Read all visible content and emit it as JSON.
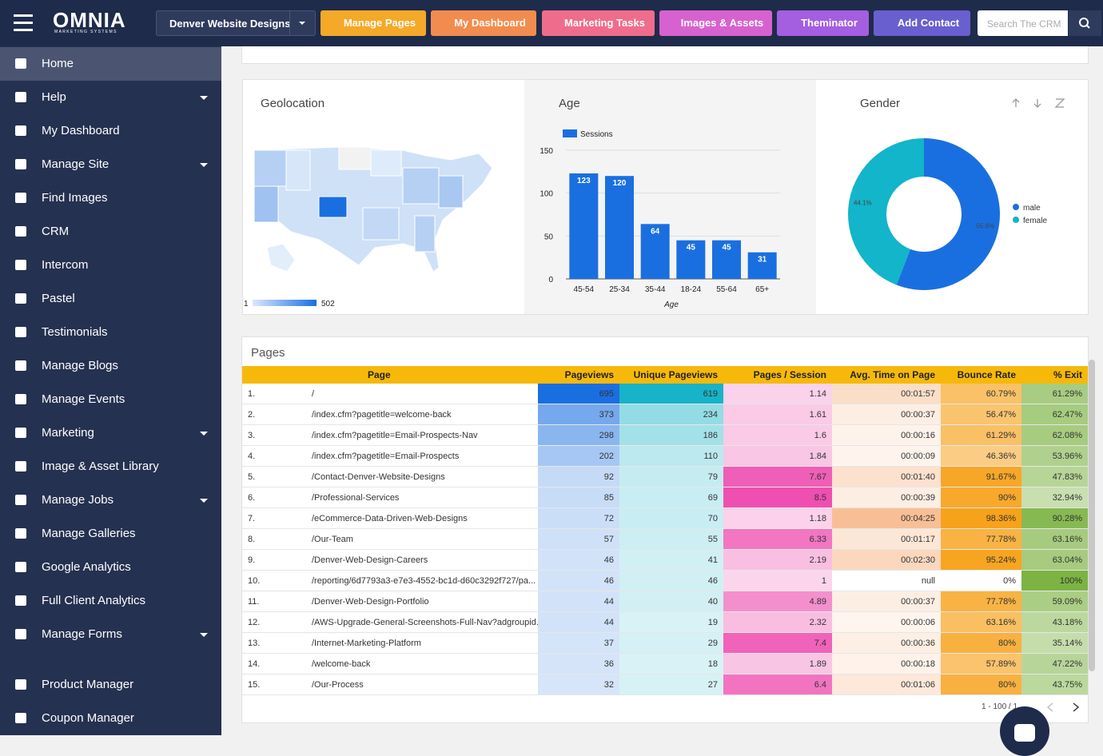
{
  "topbar": {
    "logo": "OMNIA",
    "logo_sub": "MARKETING SYSTEMS",
    "site_select": "Denver Website Designs",
    "buttons": [
      {
        "label": "Manage Pages",
        "color": "#f5a928"
      },
      {
        "label": "My Dashboard",
        "color": "#f28c4e"
      },
      {
        "label": "Marketing Tasks",
        "color": "#f06c8c"
      },
      {
        "label": "Images & Assets",
        "color": "#d662cf"
      },
      {
        "label": "Theminator",
        "color": "#a45ee0"
      },
      {
        "label": "Add Contact",
        "color": "#6a5fcf"
      }
    ],
    "search_placeholder": "Search The CRM"
  },
  "sidebar": {
    "main": [
      {
        "label": "Home",
        "active": true
      },
      {
        "label": "Help",
        "submenu": true
      },
      {
        "label": "My Dashboard"
      },
      {
        "label": "Manage Site",
        "submenu": true
      },
      {
        "label": "Find Images"
      },
      {
        "label": "CRM"
      },
      {
        "label": "Intercom"
      },
      {
        "label": "Pastel"
      },
      {
        "label": "Testimonials"
      },
      {
        "label": "Manage Blogs"
      },
      {
        "label": "Manage Events"
      },
      {
        "label": "Marketing",
        "submenu": true
      },
      {
        "label": "Image & Asset Library"
      },
      {
        "label": "Manage Jobs",
        "submenu": true
      },
      {
        "label": "Manage Galleries"
      },
      {
        "label": "Google Analytics"
      },
      {
        "label": "Full Client Analytics"
      },
      {
        "label": "Manage Forms",
        "submenu": true
      }
    ],
    "footer": [
      {
        "label": "Product Manager"
      },
      {
        "label": "Coupon Manager"
      }
    ]
  },
  "geolocation": {
    "title": "Geolocation",
    "scale_min": 1,
    "scale_max": 502
  },
  "age": {
    "type": "bar",
    "title": "Age",
    "legend": "Sessions",
    "x_label": "Age",
    "categories": [
      "45-54",
      "25-34",
      "35-44",
      "18-24",
      "55-64",
      "65+"
    ],
    "values": [
      123,
      120,
      64,
      45,
      45,
      31
    ],
    "color": "#1a6fe0",
    "ylim": [
      0,
      150
    ],
    "yticks": [
      0,
      50,
      100,
      150
    ],
    "grid": true
  },
  "gender": {
    "type": "pie",
    "title": "Gender",
    "categories": [
      "male",
      "female"
    ],
    "values": [
      55.9,
      44.1
    ],
    "value_labels": [
      "55.9%",
      "44.1%"
    ],
    "colors": [
      "#1a6fe0",
      "#12b5c9"
    ]
  },
  "pages": {
    "title": "Pages",
    "columns": [
      "Page",
      "Pageviews",
      "Unique Pageviews",
      "Pages / Session",
      "Avg. Time on Page",
      "Bounce Rate",
      "% Exit"
    ],
    "column_colors": [
      "#1a6fe0",
      "#17b3c8",
      "#ee4fb0",
      "#f8bf96",
      "#f7a21b",
      "#7cb342"
    ],
    "rows": [
      [
        "1.",
        "/",
        "695",
        "619",
        "1.14",
        "00:01:57",
        "60.79%",
        "61.29%"
      ],
      [
        "2.",
        "/index.cfm?pagetitle=welcome-back",
        "373",
        "234",
        "1.61",
        "00:00:37",
        "56.47%",
        "62.47%"
      ],
      [
        "3.",
        "/index.cfm?pagetitle=Email-Prospects-Nav",
        "298",
        "186",
        "1.6",
        "00:00:16",
        "61.29%",
        "62.08%"
      ],
      [
        "4.",
        "/index.cfm?pagetitle=Email-Prospects",
        "202",
        "110",
        "1.84",
        "00:00:09",
        "46.36%",
        "53.96%"
      ],
      [
        "5.",
        "/Contact-Denver-Website-Designs",
        "92",
        "79",
        "7.67",
        "00:01:40",
        "91.67%",
        "47.83%"
      ],
      [
        "6.",
        "/Professional-Services",
        "85",
        "69",
        "8.5",
        "00:00:39",
        "90%",
        "32.94%"
      ],
      [
        "7.",
        "/eCommerce-Data-Driven-Web-Designs",
        "72",
        "70",
        "1.18",
        "00:04:25",
        "98.36%",
        "90.28%"
      ],
      [
        "8.",
        "/Our-Team",
        "57",
        "55",
        "6.33",
        "00:01:17",
        "77.78%",
        "63.16%"
      ],
      [
        "9.",
        "/Denver-Web-Design-Careers",
        "46",
        "41",
        "2.19",
        "00:02:30",
        "95.24%",
        "63.04%"
      ],
      [
        "10.",
        "/reporting/6d7793a3-e7e3-4552-bc1d-d60c3292f727/pa...",
        "46",
        "46",
        "1",
        "null",
        "0%",
        "100%"
      ],
      [
        "11.",
        "/Denver-Web-Design-Portfolio",
        "44",
        "40",
        "4.89",
        "00:00:37",
        "77.78%",
        "59.09%"
      ],
      [
        "12.",
        "/AWS-Upgrade-General-Screenshots-Full-Nav?adgroupid...",
        "44",
        "19",
        "2.32",
        "00:00:06",
        "63.16%",
        "43.18%"
      ],
      [
        "13.",
        "/Internet-Marketing-Platform",
        "37",
        "29",
        "7.4",
        "00:00:36",
        "80%",
        "35.14%"
      ],
      [
        "14.",
        "/welcome-back",
        "36",
        "18",
        "1.89",
        "00:00:18",
        "57.89%",
        "47.22%"
      ],
      [
        "15.",
        "/Our-Process",
        "32",
        "27",
        "6.4",
        "00:01:06",
        "80%",
        "43.75%"
      ]
    ],
    "pagination": "1 - 100 / 1"
  }
}
